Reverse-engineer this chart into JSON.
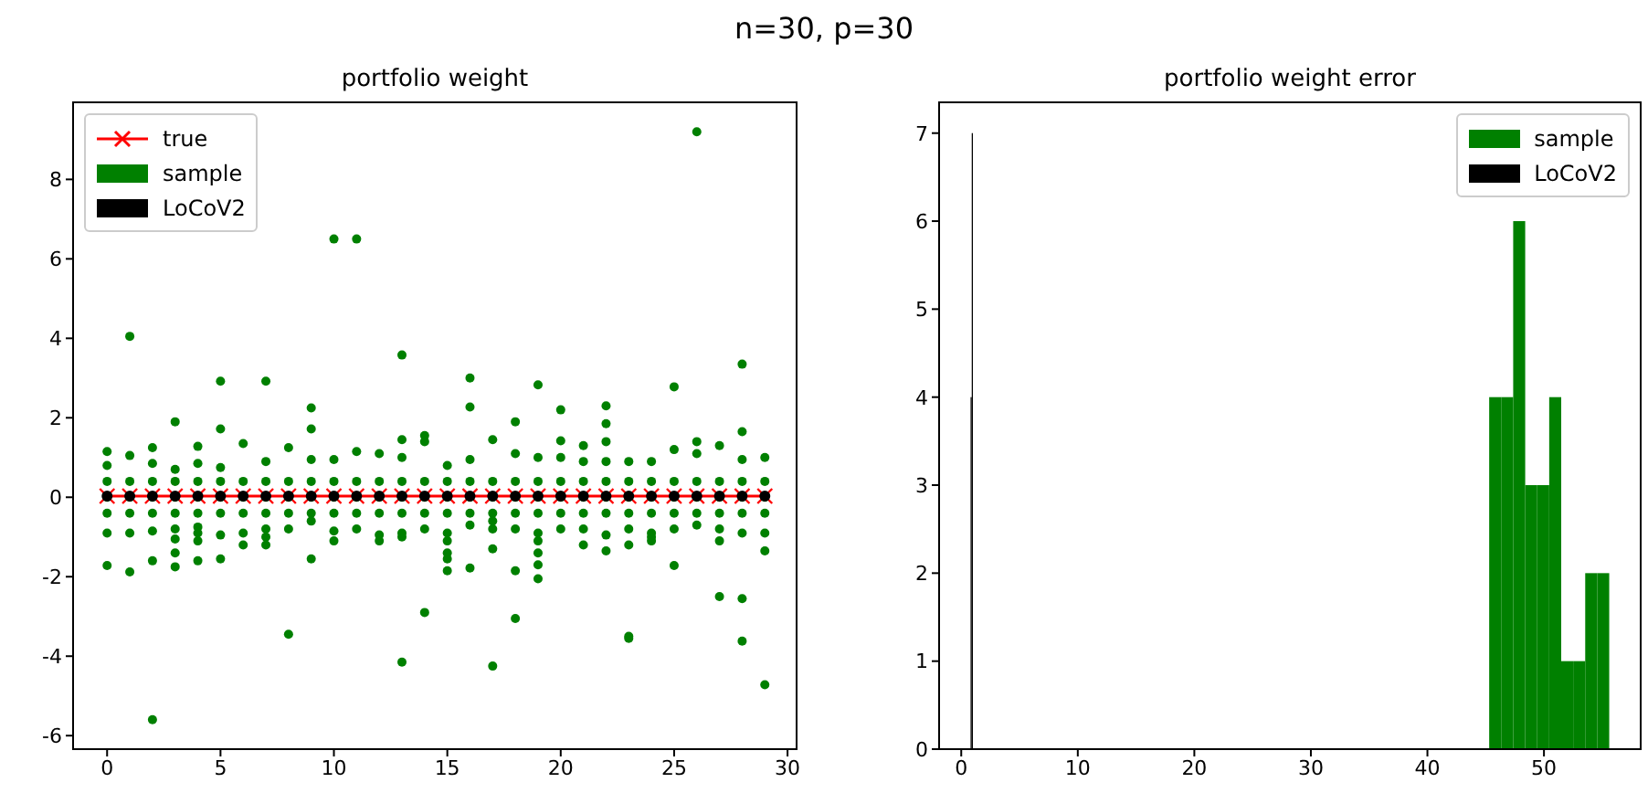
{
  "chart_data": [
    {
      "type": "scatter",
      "title": "portfolio weight",
      "annotations": [
        "n=30, p=30"
      ],
      "legend": "top left",
      "xlim": [
        -1.5,
        30.4
      ],
      "xticks": [
        0,
        5,
        10,
        15,
        20,
        25,
        30
      ],
      "ylim": [
        -6.34,
        9.94
      ],
      "yticks": [
        -6,
        -4,
        -2,
        0,
        2,
        4,
        6,
        8
      ],
      "grid": false,
      "series": [
        {
          "name": "true",
          "type": "line",
          "marker": "cross",
          "color": "#ff0000",
          "x": [
            0,
            1,
            2,
            3,
            4,
            5,
            6,
            7,
            8,
            9,
            10,
            11,
            12,
            13,
            14,
            15,
            16,
            17,
            18,
            19,
            20,
            21,
            22,
            23,
            24,
            25,
            26,
            27,
            28,
            29
          ],
          "values": [
            0.03,
            0.03,
            0.03,
            0.03,
            0.03,
            0.03,
            0.03,
            0.03,
            0.03,
            0.03,
            0.03,
            0.03,
            0.03,
            0.03,
            0.03,
            0.03,
            0.03,
            0.03,
            0.03,
            0.03,
            0.03,
            0.03,
            0.03,
            0.03,
            0.03,
            0.03,
            0.03,
            0.03,
            0.03,
            0.03
          ]
        },
        {
          "name": "sample",
          "type": "scatter",
          "marker": "circle",
          "color": "#008000",
          "x": [
            0,
            0,
            0,
            0,
            0,
            0,
            0,
            1,
            1,
            1,
            1,
            1,
            1,
            1,
            2,
            2,
            2,
            2,
            2,
            2,
            2,
            2,
            3,
            3,
            3,
            3,
            3,
            3,
            3,
            3,
            3,
            4,
            4,
            4,
            4,
            4,
            4,
            4,
            4,
            4,
            5,
            5,
            5,
            5,
            5,
            5,
            5,
            5,
            6,
            6,
            6,
            6,
            6,
            6,
            7,
            7,
            7,
            7,
            7,
            7,
            7,
            7,
            8,
            8,
            8,
            8,
            8,
            8,
            9,
            9,
            9,
            9,
            9,
            9,
            9,
            9,
            10,
            10,
            10,
            10,
            10,
            10,
            10,
            11,
            11,
            11,
            11,
            11,
            11,
            12,
            12,
            12,
            12,
            12,
            12,
            13,
            13,
            13,
            13,
            13,
            13,
            13,
            13,
            13,
            14,
            14,
            14,
            14,
            14,
            14,
            14,
            15,
            15,
            15,
            15,
            15,
            15,
            15,
            15,
            15,
            16,
            16,
            16,
            16,
            16,
            16,
            16,
            16,
            17,
            17,
            17,
            17,
            17,
            17,
            17,
            17,
            18,
            18,
            18,
            18,
            18,
            18,
            18,
            18,
            19,
            19,
            19,
            19,
            19,
            19,
            19,
            19,
            19,
            19,
            20,
            20,
            20,
            20,
            20,
            20,
            20,
            21,
            21,
            21,
            21,
            21,
            21,
            21,
            22,
            22,
            22,
            22,
            22,
            22,
            22,
            22,
            22,
            23,
            23,
            23,
            23,
            23,
            23,
            23,
            23,
            24,
            24,
            24,
            24,
            24,
            24,
            24,
            25,
            25,
            25,
            25,
            25,
            25,
            25,
            26,
            26,
            26,
            26,
            26,
            26,
            26,
            27,
            27,
            27,
            27,
            27,
            27,
            27,
            28,
            28,
            28,
            28,
            28,
            28,
            28,
            28,
            28,
            29,
            29,
            29,
            29,
            29,
            29,
            29
          ],
          "values": [
            -0.9,
            -0.4,
            0,
            0.4,
            0.8,
            1.15,
            -1.72,
            -0.9,
            -0.4,
            0,
            0.4,
            1.05,
            4.05,
            -1.88,
            -0.85,
            -0.4,
            0,
            0.4,
            0.85,
            1.25,
            -1.6,
            -5.6,
            -0.8,
            -0.4,
            0,
            0.4,
            0.7,
            1.9,
            -1.05,
            -1.4,
            -1.75,
            -0.75,
            -0.4,
            0,
            0.4,
            0.85,
            1.28,
            -0.9,
            -1.1,
            -1.6,
            -0.95,
            -0.4,
            0,
            0.4,
            0.75,
            1.72,
            2.92,
            -1.55,
            -0.9,
            -0.4,
            0,
            0.4,
            1.35,
            -1.2,
            -0.8,
            -0.4,
            0,
            0.4,
            0.9,
            2.92,
            -1.0,
            -1.2,
            -0.8,
            -0.4,
            0,
            0.4,
            1.25,
            -3.45,
            -0.6,
            -0.4,
            0,
            0.4,
            0.95,
            1.72,
            2.25,
            -1.55,
            -0.85,
            -0.4,
            0,
            0.4,
            0.95,
            6.5,
            -1.1,
            -0.8,
            -0.4,
            0,
            0.4,
            1.15,
            6.5,
            -0.95,
            -0.4,
            0,
            0.4,
            1.1,
            -1.1,
            -0.9,
            -0.4,
            0,
            0.4,
            1.0,
            1.45,
            3.58,
            -1.0,
            -4.15,
            -0.8,
            -0.4,
            0,
            0.4,
            1.4,
            1.55,
            -2.9,
            -0.9,
            -0.4,
            0,
            0.4,
            0.8,
            -1.1,
            -1.4,
            -1.55,
            -1.85,
            -0.7,
            -0.4,
            0,
            0.4,
            0.95,
            2.27,
            3.0,
            -1.78,
            -0.6,
            -0.4,
            0,
            0.4,
            1.45,
            -0.8,
            -1.3,
            -4.25,
            -0.8,
            -0.4,
            0,
            0.4,
            1.1,
            1.9,
            -1.85,
            -3.05,
            -0.9,
            -0.4,
            0,
            0.4,
            1.0,
            2.83,
            -1.1,
            -1.4,
            -1.7,
            -2.05,
            -0.8,
            -0.4,
            0,
            0.4,
            1.0,
            1.42,
            2.2,
            -0.8,
            -0.4,
            0,
            0.4,
            0.9,
            1.3,
            -1.2,
            -0.95,
            -0.4,
            0,
            0.4,
            0.9,
            1.4,
            1.85,
            2.3,
            -1.35,
            -0.8,
            -0.4,
            0,
            0.4,
            0.9,
            -1.2,
            -3.5,
            -3.55,
            -0.9,
            -0.4,
            0,
            0.4,
            0.9,
            -1.0,
            -1.1,
            -0.8,
            -0.4,
            0,
            0.4,
            1.2,
            2.78,
            -1.72,
            -0.7,
            -0.4,
            0,
            0.4,
            1.1,
            1.4,
            9.2,
            -0.8,
            -0.4,
            0,
            0.4,
            1.3,
            -1.1,
            -2.5,
            -0.9,
            -0.4,
            0,
            0.4,
            0.95,
            1.65,
            3.35,
            -2.55,
            -3.62,
            -0.9,
            -0.4,
            0,
            0.4,
            1.0,
            -1.35,
            -4.72
          ]
        },
        {
          "name": "LoCoV2",
          "type": "scatter",
          "marker": "circle",
          "color": "#000000",
          "x": [
            0,
            1,
            2,
            3,
            4,
            5,
            6,
            7,
            8,
            9,
            10,
            11,
            12,
            13,
            14,
            15,
            16,
            17,
            18,
            19,
            20,
            21,
            22,
            23,
            24,
            25,
            26,
            27,
            28,
            29
          ],
          "values": [
            0.03,
            0.03,
            0.03,
            0.03,
            0.03,
            0.03,
            0.03,
            0.03,
            0.03,
            0.03,
            0.03,
            0.03,
            0.03,
            0.03,
            0.03,
            0.03,
            0.03,
            0.03,
            0.03,
            0.03,
            0.03,
            0.03,
            0.03,
            0.03,
            0.03,
            0.03,
            0.03,
            0.03,
            0.03,
            0.03
          ]
        }
      ]
    },
    {
      "type": "histogram",
      "title": "portfolio weight error",
      "legend": "top right",
      "bins": [
        0.8,
        0.9,
        1.0,
        45.3,
        46.33,
        47.36,
        48.39,
        49.42,
        50.45,
        51.48,
        52.51,
        53.54,
        54.57,
        55.6
      ],
      "xlim": [
        -1.9,
        58.3
      ],
      "xticks": [
        0,
        10,
        20,
        30,
        40,
        50
      ],
      "ylim": [
        0,
        7.35
      ],
      "yticks": [
        0,
        1,
        2,
        3,
        4,
        5,
        6,
        7
      ],
      "grid": false,
      "series": [
        {
          "name": "sample",
          "color": "#008000",
          "values": [
            null,
            null,
            null,
            4,
            4,
            6,
            3,
            3,
            4,
            1,
            1,
            2,
            2
          ]
        },
        {
          "name": "LoCoV2",
          "color": "#000000",
          "values": [
            4,
            7,
            null,
            null,
            null,
            null,
            null,
            null,
            null,
            null,
            null,
            null,
            null
          ]
        }
      ]
    }
  ]
}
